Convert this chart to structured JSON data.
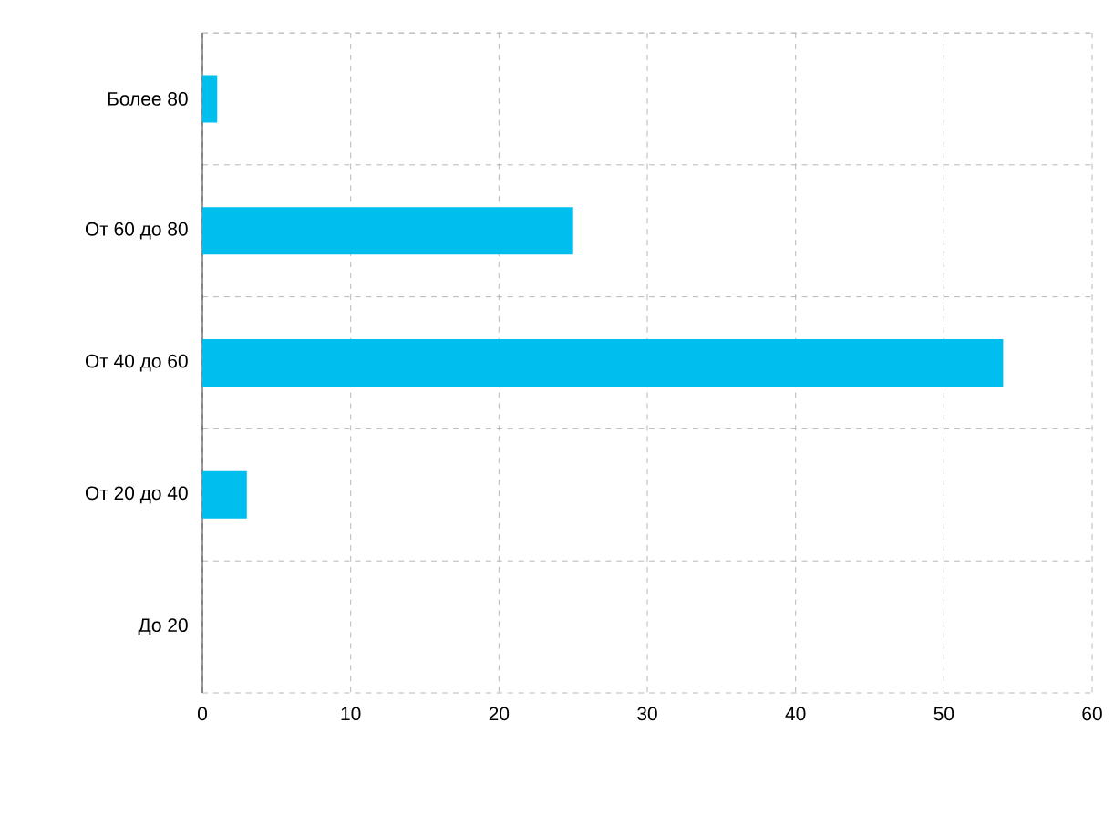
{
  "chart_data": {
    "type": "bar",
    "orientation": "horizontal",
    "categories": [
      "Более 80",
      "От 60 до 80",
      "От 40 до 60",
      "От 20 до 40",
      "До 20"
    ],
    "series": [
      {
        "color": "#00bfef",
        "values": [
          1,
          25,
          54,
          3,
          0
        ]
      }
    ],
    "xlim": [
      0,
      60
    ],
    "xticks": [
      0,
      10,
      20,
      30,
      40,
      50,
      60
    ],
    "grid": true
  }
}
